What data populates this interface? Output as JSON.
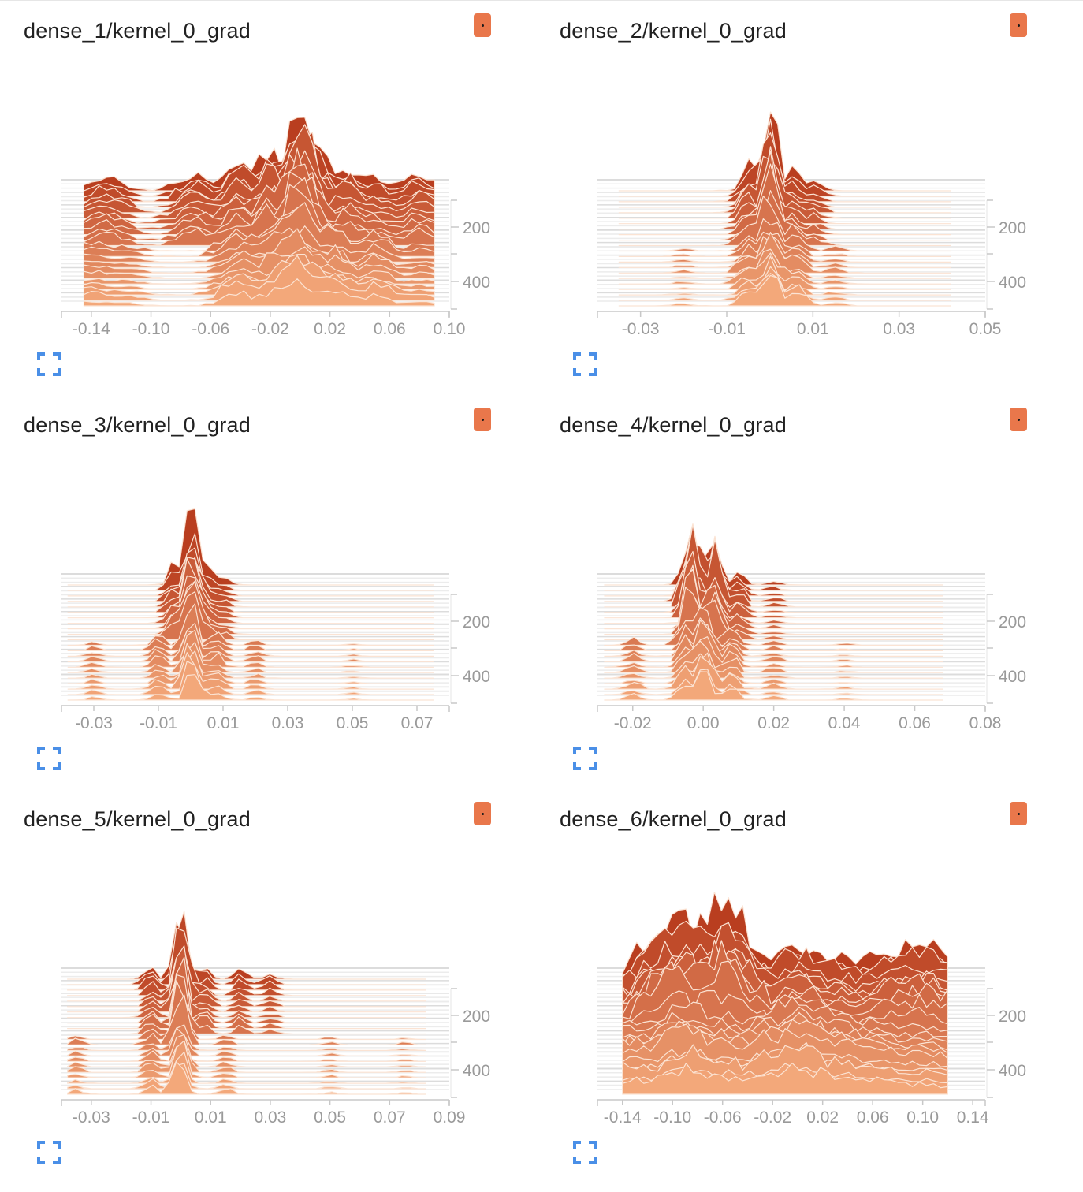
{
  "colors": {
    "chip": "#e9774b",
    "expand_icon": "#4a8fe7",
    "axis": "#c8c8c8",
    "tick_text": "#9a9a9a",
    "ridge_dark": "#b93e1f",
    "ridge_mid": "#e9774b",
    "ridge_light": "#f3a87a"
  },
  "icons": {
    "expand": "expand-icon",
    "run_chip": "run-color-chip"
  },
  "chart_data": [
    {
      "type": "area",
      "title": "dense_1/kernel_0_grad",
      "xlabel": "",
      "ylabel": "",
      "xticks": [
        "-0.14",
        "-0.10",
        "-0.06",
        "-0.02",
        "0.02",
        "0.06",
        "0.10"
      ],
      "xtick_values": [
        -0.14,
        -0.1,
        -0.06,
        -0.02,
        0.02,
        0.06,
        0.1
      ],
      "xlim": [
        -0.16,
        0.1
      ],
      "yticks": [
        "200",
        "400"
      ],
      "ytick_values": [
        200,
        400
      ],
      "ylim": [
        0,
        500
      ],
      "step_range": [
        0,
        500
      ],
      "ridge_span": [
        -0.145,
        0.09
      ],
      "center": 0.0,
      "spread": 0.035,
      "peaks_dark": [
        [
          -0.13,
          0.2
        ],
        [
          -0.07,
          0.25
        ],
        [
          -0.04,
          0.4
        ],
        [
          -0.02,
          0.55
        ],
        [
          0.0,
          1.0
        ],
        [
          0.03,
          0.35
        ],
        [
          0.05,
          0.2
        ],
        [
          0.08,
          0.25
        ]
      ],
      "peaks_light": [
        [
          -0.14,
          0.15
        ],
        [
          -0.12,
          0.1
        ],
        [
          -0.04,
          0.35
        ],
        [
          -0.01,
          0.6
        ],
        [
          0.0,
          0.7
        ],
        [
          0.02,
          0.45
        ],
        [
          0.05,
          0.3
        ],
        [
          0.08,
          0.12
        ]
      ]
    },
    {
      "type": "area",
      "title": "dense_2/kernel_0_grad",
      "xlabel": "",
      "ylabel": "",
      "xticks": [
        "-0.03",
        "-0.01",
        "0.01",
        "0.03",
        "0.05"
      ],
      "xtick_values": [
        -0.03,
        -0.01,
        0.01,
        0.03,
        0.05
      ],
      "xlim": [
        -0.04,
        0.05
      ],
      "yticks": [
        "200",
        "400"
      ],
      "ytick_values": [
        200,
        400
      ],
      "ylim": [
        0,
        500
      ],
      "step_range": [
        0,
        500
      ],
      "ridge_span": [
        -0.035,
        0.042
      ],
      "center": 0.0,
      "spread": 0.006,
      "peaks_dark": [
        [
          -0.005,
          0.35
        ],
        [
          0.0,
          1.0
        ],
        [
          0.005,
          0.3
        ],
        [
          0.01,
          0.15
        ]
      ],
      "peaks_light": [
        [
          -0.02,
          0.05
        ],
        [
          -0.005,
          0.35
        ],
        [
          0.0,
          0.7
        ],
        [
          0.006,
          0.3
        ],
        [
          0.015,
          0.08
        ]
      ]
    },
    {
      "type": "area",
      "title": "dense_3/kernel_0_grad",
      "xlabel": "",
      "ylabel": "",
      "xticks": [
        "-0.03",
        "-0.01",
        "0.01",
        "0.03",
        "0.05",
        "0.07"
      ],
      "xtick_values": [
        -0.03,
        -0.01,
        0.01,
        0.03,
        0.05,
        0.07
      ],
      "xlim": [
        -0.04,
        0.08
      ],
      "yticks": [
        "200",
        "400"
      ],
      "ytick_values": [
        200,
        400
      ],
      "ylim": [
        0,
        500
      ],
      "step_range": [
        0,
        500
      ],
      "ridge_span": [
        -0.038,
        0.075
      ],
      "center": 0.0,
      "spread": 0.006,
      "peaks_dark": [
        [
          -0.005,
          0.3
        ],
        [
          0.0,
          1.0
        ],
        [
          0.004,
          0.35
        ],
        [
          0.01,
          0.12
        ]
      ],
      "peaks_light": [
        [
          -0.03,
          0.08
        ],
        [
          -0.01,
          0.2
        ],
        [
          0.0,
          0.75
        ],
        [
          0.008,
          0.25
        ],
        [
          0.02,
          0.1
        ],
        [
          0.05,
          0.04
        ]
      ]
    },
    {
      "type": "area",
      "title": "dense_4/kernel_0_grad",
      "xlabel": "",
      "ylabel": "",
      "xticks": [
        "-0.02",
        "0.00",
        "0.02",
        "0.04",
        "0.06",
        "0.08"
      ],
      "xtick_values": [
        -0.02,
        0.0,
        0.02,
        0.04,
        0.06,
        0.08
      ],
      "xlim": [
        -0.03,
        0.08
      ],
      "yticks": [
        "200",
        "400"
      ],
      "ytick_values": [
        200,
        400
      ],
      "ylim": [
        0,
        500
      ],
      "step_range": [
        0,
        500
      ],
      "ridge_span": [
        -0.028,
        0.068
      ],
      "center": -0.002,
      "spread": 0.006,
      "peaks_dark": [
        [
          -0.003,
          1.0
        ],
        [
          0.003,
          0.75
        ],
        [
          0.01,
          0.2
        ],
        [
          0.02,
          0.06
        ]
      ],
      "peaks_light": [
        [
          -0.02,
          0.12
        ],
        [
          -0.005,
          0.4
        ],
        [
          0.0,
          0.8
        ],
        [
          0.008,
          0.3
        ],
        [
          0.02,
          0.1
        ],
        [
          0.04,
          0.04
        ]
      ]
    },
    {
      "type": "area",
      "title": "dense_5/kernel_0_grad",
      "xlabel": "",
      "ylabel": "",
      "xticks": [
        "-0.03",
        "-0.01",
        "0.01",
        "0.03",
        "0.05",
        "0.07",
        "0.09"
      ],
      "xtick_values": [
        -0.03,
        -0.01,
        0.01,
        0.03,
        0.05,
        0.07,
        0.09
      ],
      "xlim": [
        -0.04,
        0.09
      ],
      "yticks": [
        "200",
        "400"
      ],
      "ytick_values": [
        200,
        400
      ],
      "ylim": [
        0,
        500
      ],
      "step_range": [
        0,
        500
      ],
      "ridge_span": [
        -0.038,
        0.082
      ],
      "center": 0.0,
      "spread": 0.006,
      "peaks_dark": [
        [
          -0.01,
          0.2
        ],
        [
          0.0,
          1.0
        ],
        [
          0.008,
          0.2
        ],
        [
          0.02,
          0.15
        ],
        [
          0.03,
          0.1
        ]
      ],
      "peaks_light": [
        [
          -0.035,
          0.1
        ],
        [
          -0.01,
          0.2
        ],
        [
          0.0,
          0.8
        ],
        [
          0.015,
          0.12
        ],
        [
          0.05,
          0.06
        ],
        [
          0.075,
          0.04
        ]
      ]
    },
    {
      "type": "area",
      "title": "dense_6/kernel_0_grad",
      "xlabel": "",
      "ylabel": "",
      "xticks": [
        "-0.14",
        "-0.10",
        "-0.06",
        "-0.02",
        "0.02",
        "0.06",
        "0.10",
        "0.14"
      ],
      "xtick_values": [
        -0.14,
        -0.1,
        -0.06,
        -0.02,
        0.02,
        0.06,
        0.1,
        0.14
      ],
      "xlim": [
        -0.16,
        0.15
      ],
      "yticks": [
        "200",
        "400"
      ],
      "ytick_values": [
        200,
        400
      ],
      "ylim": [
        0,
        500
      ],
      "step_range": [
        0,
        500
      ],
      "ridge_span": [
        -0.14,
        0.12
      ],
      "center": 0.0,
      "spread": 0.07,
      "peaks_dark": [
        [
          -0.1,
          0.85
        ],
        [
          -0.08,
          0.45
        ],
        [
          -0.06,
          1.0
        ],
        [
          -0.03,
          0.35
        ],
        [
          0.0,
          0.5
        ],
        [
          0.03,
          0.35
        ],
        [
          0.06,
          0.3
        ],
        [
          0.08,
          0.45
        ],
        [
          0.1,
          0.5
        ]
      ],
      "peaks_light": [
        [
          -0.13,
          0.35
        ],
        [
          -0.09,
          0.6
        ],
        [
          -0.06,
          0.45
        ],
        [
          -0.02,
          0.55
        ],
        [
          0.0,
          0.7
        ],
        [
          0.03,
          0.45
        ],
        [
          0.06,
          0.35
        ],
        [
          0.1,
          0.25
        ]
      ]
    }
  ]
}
